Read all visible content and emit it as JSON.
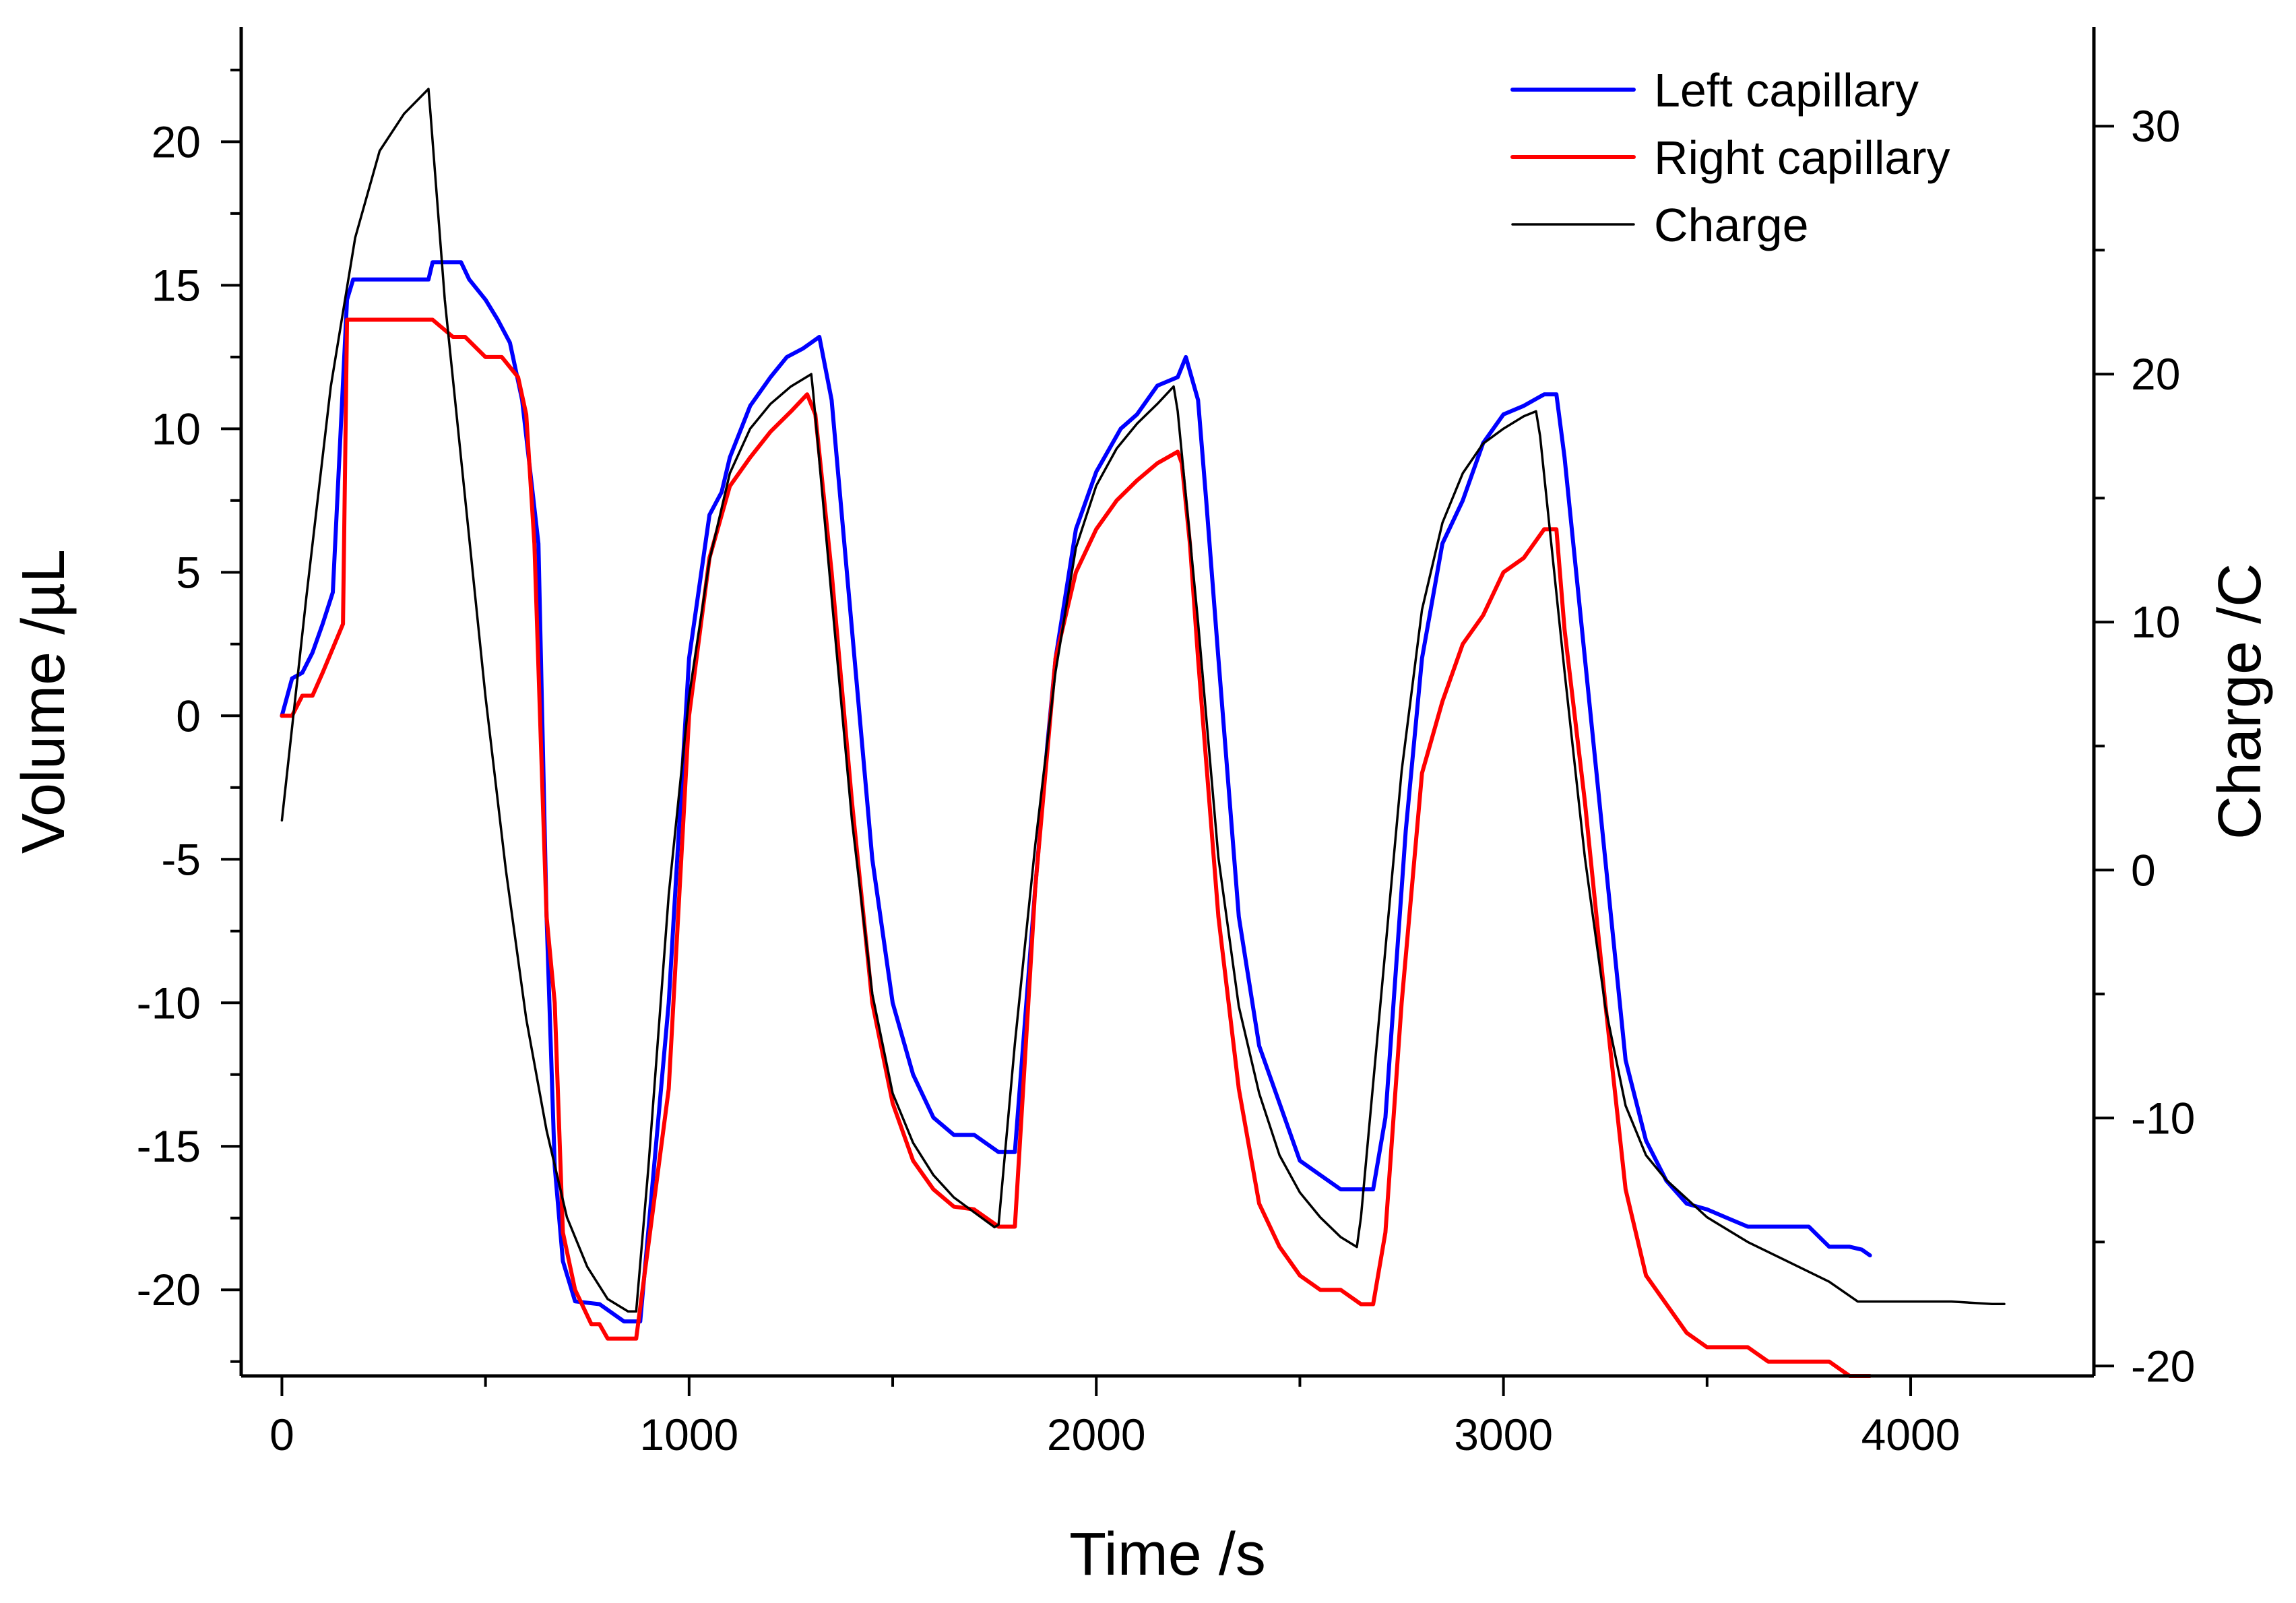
{
  "chart_data": {
    "type": "line",
    "xlabel": "Time /s",
    "ylabel": "Volume /µL",
    "y2label": "Charge /C",
    "xlim": [
      -100,
      4450
    ],
    "ylim": [
      -23,
      24
    ],
    "y2lim": [
      -20.4,
      34
    ],
    "x_ticks": [
      0,
      1000,
      2000,
      3000,
      4000
    ],
    "y_ticks": [
      -20,
      -15,
      -10,
      -5,
      0,
      5,
      10,
      15,
      20
    ],
    "y2_ticks": [
      -20,
      -10,
      0,
      10,
      20,
      30
    ],
    "legend_position": "top-right",
    "series": [
      {
        "name": "Left capillary",
        "axis": "left",
        "color": "#0000ff",
        "x": [
          0,
          25,
          50,
          75,
          100,
          125,
          160,
          175,
          250,
          300,
          360,
          370,
          440,
          460,
          500,
          530,
          560,
          590,
          630,
          650,
          670,
          690,
          720,
          780,
          840,
          880,
          950,
          1000,
          1050,
          1080,
          1100,
          1150,
          1200,
          1240,
          1280,
          1320,
          1350,
          1400,
          1450,
          1500,
          1550,
          1600,
          1650,
          1700,
          1760,
          1800,
          1850,
          1880,
          1900,
          1950,
          2000,
          2060,
          2100,
          2150,
          2200,
          2220,
          2250,
          2270,
          2300,
          2350,
          2400,
          2450,
          2500,
          2550,
          2600,
          2650,
          2680,
          2710,
          2760,
          2800,
          2850,
          2900,
          2950,
          3000,
          3050,
          3100,
          3130,
          3150,
          3200,
          3250,
          3300,
          3350,
          3400,
          3450,
          3500,
          3550,
          3600,
          3650,
          3700,
          3750,
          3800,
          3850,
          3880,
          3900
        ],
        "y": [
          0,
          1.3,
          1.5,
          2.2,
          3.2,
          4.3,
          14.5,
          15.2,
          15.2,
          15.2,
          15.2,
          15.8,
          15.8,
          15.2,
          14.5,
          13.8,
          13.0,
          11.0,
          6.0,
          -7.0,
          -15.7,
          -19.0,
          -20.4,
          -20.5,
          -21.1,
          -21.1,
          -10.0,
          2.0,
          7.0,
          7.8,
          9.0,
          10.8,
          11.8,
          12.5,
          12.8,
          13.2,
          11.0,
          3.0,
          -5.0,
          -10.0,
          -12.5,
          -14.0,
          -14.6,
          -14.6,
          -15.2,
          -15.2,
          -6.0,
          -1.0,
          2.0,
          6.5,
          8.5,
          10.0,
          10.5,
          11.5,
          11.8,
          12.5,
          11.0,
          7.5,
          2.0,
          -7.0,
          -11.5,
          -13.5,
          -15.5,
          -16.0,
          -16.5,
          -16.5,
          -16.5,
          -14.0,
          -4.0,
          2.0,
          6.0,
          7.5,
          9.5,
          10.5,
          10.8,
          11.2,
          11.2,
          9.0,
          2.0,
          -5.0,
          -12.0,
          -14.8,
          -16.2,
          -17.0,
          -17.2,
          -17.5,
          -17.8,
          -17.8,
          -17.8,
          -17.8,
          -18.5,
          -18.5,
          -18.6,
          -18.8
        ]
      },
      {
        "name": "Right capillary",
        "axis": "left",
        "color": "#ff0000",
        "x": [
          0,
          25,
          50,
          75,
          100,
          150,
          160,
          175,
          250,
          300,
          360,
          370,
          420,
          450,
          500,
          540,
          580,
          600,
          620,
          650,
          670,
          690,
          720,
          760,
          780,
          800,
          840,
          870,
          950,
          1000,
          1050,
          1100,
          1150,
          1200,
          1250,
          1290,
          1310,
          1350,
          1400,
          1450,
          1500,
          1550,
          1600,
          1650,
          1700,
          1760,
          1780,
          1800,
          1850,
          1900,
          1950,
          2000,
          2050,
          2100,
          2150,
          2200,
          2210,
          2230,
          2250,
          2300,
          2350,
          2400,
          2450,
          2500,
          2550,
          2600,
          2650,
          2680,
          2710,
          2750,
          2800,
          2850,
          2900,
          2950,
          3000,
          3050,
          3100,
          3130,
          3150,
          3200,
          3250,
          3300,
          3350,
          3400,
          3450,
          3500,
          3550,
          3600,
          3650,
          3700,
          3750,
          3800,
          3850,
          3880,
          3900
        ],
        "y": [
          0,
          0,
          0.7,
          0.7,
          1.5,
          3.2,
          13.8,
          13.8,
          13.8,
          13.8,
          13.8,
          13.8,
          13.2,
          13.2,
          12.5,
          12.5,
          11.8,
          10.5,
          6.0,
          -7.0,
          -10.0,
          -18.0,
          -20.0,
          -21.2,
          -21.2,
          -21.7,
          -21.7,
          -21.7,
          -13.0,
          0.0,
          5.5,
          8.0,
          9.0,
          9.9,
          10.6,
          11.2,
          10.5,
          5.0,
          -3.0,
          -10.0,
          -13.5,
          -15.5,
          -16.5,
          -17.1,
          -17.2,
          -17.8,
          -17.8,
          -17.8,
          -6.0,
          2.0,
          5.0,
          6.5,
          7.5,
          8.2,
          8.8,
          9.2,
          8.8,
          6.0,
          2.0,
          -7.0,
          -13.0,
          -17.0,
          -18.5,
          -19.5,
          -20.0,
          -20.0,
          -20.5,
          -20.5,
          -18.0,
          -10.0,
          -2.0,
          0.5,
          2.5,
          3.5,
          5.0,
          5.5,
          6.5,
          6.5,
          3.0,
          -3.0,
          -10.0,
          -16.5,
          -19.5,
          -20.5,
          -21.5,
          -22.0,
          -22.0,
          -22.0,
          -22.5,
          -22.5,
          -22.5,
          -22.5,
          -23.0,
          -23.0,
          -23.0
        ]
      },
      {
        "name": "Charge",
        "axis": "right",
        "color": "#000000",
        "x": [
          0,
          60,
          120,
          180,
          240,
          300,
          360,
          365,
          400,
          450,
          500,
          550,
          600,
          650,
          700,
          750,
          800,
          850,
          870,
          900,
          950,
          1000,
          1050,
          1100,
          1150,
          1200,
          1250,
          1300,
          1305,
          1350,
          1400,
          1450,
          1500,
          1550,
          1600,
          1650,
          1700,
          1750,
          1760,
          1800,
          1850,
          1900,
          1950,
          2000,
          2050,
          2100,
          2150,
          2190,
          2200,
          2250,
          2300,
          2350,
          2400,
          2450,
          2500,
          2550,
          2600,
          2640,
          2650,
          2700,
          2750,
          2800,
          2850,
          2900,
          2950,
          3000,
          3050,
          3080,
          3090,
          3150,
          3200,
          3250,
          3300,
          3350,
          3400,
          3500,
          3600,
          3700,
          3800,
          3870,
          3900,
          4000,
          4100,
          4200,
          4230
        ],
        "y": [
          2.0,
          11.0,
          19.5,
          25.5,
          29.0,
          30.5,
          31.5,
          30.5,
          23.0,
          15.0,
          7.0,
          0.0,
          -6.0,
          -10.5,
          -14.0,
          -16.0,
          -17.3,
          -17.8,
          -17.8,
          -12.0,
          -1.0,
          7.0,
          12.5,
          16.0,
          17.8,
          18.8,
          19.5,
          20.0,
          19.2,
          11.0,
          2.0,
          -5.0,
          -9.0,
          -11.0,
          -12.3,
          -13.2,
          -13.8,
          -14.4,
          -14.3,
          -7.0,
          1.0,
          8.0,
          13.0,
          15.5,
          17.0,
          18.0,
          18.8,
          19.5,
          18.5,
          10.0,
          0.5,
          -5.5,
          -9.0,
          -11.5,
          -13.0,
          -14.0,
          -14.8,
          -15.2,
          -14.0,
          -5.0,
          4.0,
          10.5,
          14.0,
          16.0,
          17.2,
          17.8,
          18.3,
          18.5,
          17.5,
          8.0,
          0.5,
          -5.5,
          -9.5,
          -11.5,
          -12.5,
          -14.0,
          -15.0,
          -15.8,
          -16.6,
          -17.4,
          -17.4,
          -17.4,
          -17.4,
          -17.5,
          -17.5
        ]
      }
    ]
  }
}
